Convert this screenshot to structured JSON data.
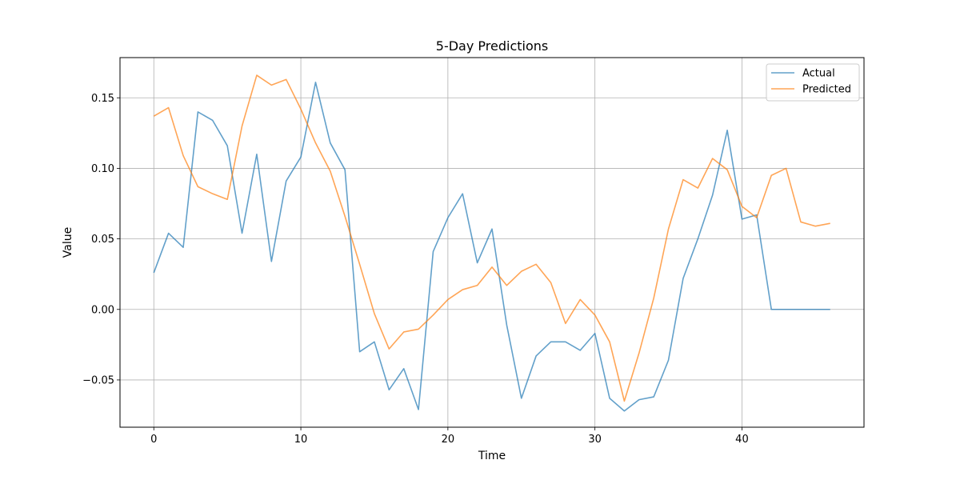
{
  "chart_data": {
    "type": "line",
    "title": "5-Day Predictions",
    "xlabel": "Time",
    "ylabel": "Value",
    "xlim": [
      -2.3,
      48.3
    ],
    "ylim": [
      -0.0835,
      0.1785
    ],
    "xticks": [
      0,
      10,
      20,
      30,
      40
    ],
    "xtick_labels": [
      "0",
      "10",
      "20",
      "30",
      "40"
    ],
    "yticks": [
      -0.05,
      0.0,
      0.05,
      0.1,
      0.15
    ],
    "ytick_labels": [
      "−0.05",
      "0.00",
      "0.05",
      "0.10",
      "0.15"
    ],
    "grid": true,
    "legend_position": "top-right",
    "x": [
      0,
      1,
      2,
      3,
      4,
      5,
      6,
      7,
      8,
      9,
      10,
      11,
      12,
      13,
      14,
      15,
      16,
      17,
      18,
      19,
      20,
      21,
      22,
      23,
      24,
      25,
      26,
      27,
      28,
      29,
      30,
      31,
      32,
      33,
      34,
      35,
      36,
      37,
      38,
      39,
      40,
      41,
      42,
      43,
      44,
      45,
      46
    ],
    "series": [
      {
        "name": "Actual",
        "color": "#1f77b4",
        "values": [
          0.026,
          0.054,
          0.044,
          0.14,
          0.134,
          0.116,
          0.054,
          0.11,
          0.034,
          0.091,
          0.108,
          0.161,
          0.118,
          0.099,
          -0.03,
          -0.023,
          -0.057,
          -0.042,
          -0.071,
          0.041,
          0.065,
          0.082,
          0.033,
          0.057,
          -0.011,
          -0.063,
          -0.033,
          -0.023,
          -0.023,
          -0.029,
          -0.017,
          -0.063,
          -0.072,
          -0.064,
          -0.062,
          -0.036,
          0.022,
          0.05,
          0.081,
          0.127,
          0.064,
          0.067,
          0.0,
          0.0,
          0.0,
          0.0,
          0.0
        ]
      },
      {
        "name": "Predicted",
        "color": "#ff7f0e",
        "values": [
          0.137,
          0.143,
          0.109,
          0.087,
          0.082,
          0.078,
          0.13,
          0.166,
          0.159,
          0.163,
          0.142,
          0.118,
          0.098,
          0.066,
          0.032,
          -0.003,
          -0.028,
          -0.016,
          -0.014,
          -0.004,
          0.007,
          0.014,
          0.017,
          0.03,
          0.017,
          0.027,
          0.032,
          0.019,
          -0.01,
          0.007,
          -0.004,
          -0.023,
          -0.065,
          -0.031,
          0.008,
          0.057,
          0.092,
          0.086,
          0.107,
          0.099,
          0.073,
          0.065,
          0.095,
          0.1,
          0.062,
          0.059,
          0.061
        ]
      }
    ]
  }
}
